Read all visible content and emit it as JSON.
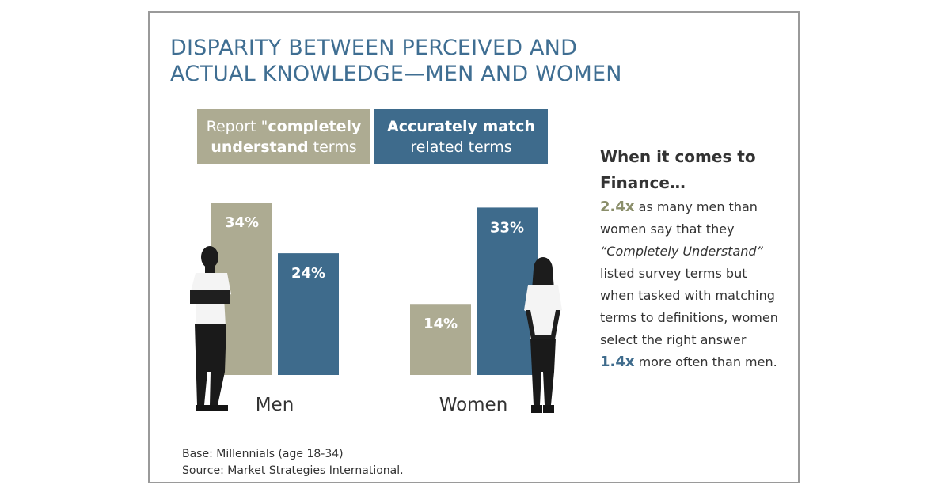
{
  "title": {
    "line1": "DISPARITY BETWEEN PERCEIVED AND",
    "line2": "ACTUAL KNOWLEDGE—MEN AND WOMEN"
  },
  "legend": {
    "gray": {
      "pre": "Report \"",
      "bold1": "completely",
      "bold2": "understand",
      "post": " terms",
      "color": "#adab92"
    },
    "blue": {
      "bold": "Accurately match",
      "post": "related terms",
      "color": "#3e6b8c"
    }
  },
  "chart_data": {
    "type": "bar",
    "categories": [
      "Men",
      "Women"
    ],
    "series": [
      {
        "name": "Report \"completely understand terms",
        "color": "#adab92",
        "values": [
          34,
          14
        ],
        "labels": [
          "34%",
          "14%"
        ]
      },
      {
        "name": "Accurately match related terms",
        "color": "#3e6b8c",
        "values": [
          24,
          33
        ],
        "labels": [
          "24%",
          "33%"
        ]
      }
    ],
    "ylim": [
      0,
      34
    ],
    "title": "",
    "xlabel": "",
    "ylabel": ""
  },
  "side": {
    "heading_line1": "When it comes to",
    "heading_line2": "Finance…",
    "stat1": "2.4x",
    "t1": " as many men than",
    "t2": "women say that they",
    "t3": "“Completely Understand”",
    "t4": "listed survey terms but",
    "t5": "when tasked with matching",
    "t6": "terms to definitions, women",
    "t7": "select the right answer",
    "stat2": "1.4x",
    "t8": " more often than men."
  },
  "footer": {
    "base": "Base: Millennials (age 18-34)",
    "source": "Source: Market Strategies International."
  }
}
